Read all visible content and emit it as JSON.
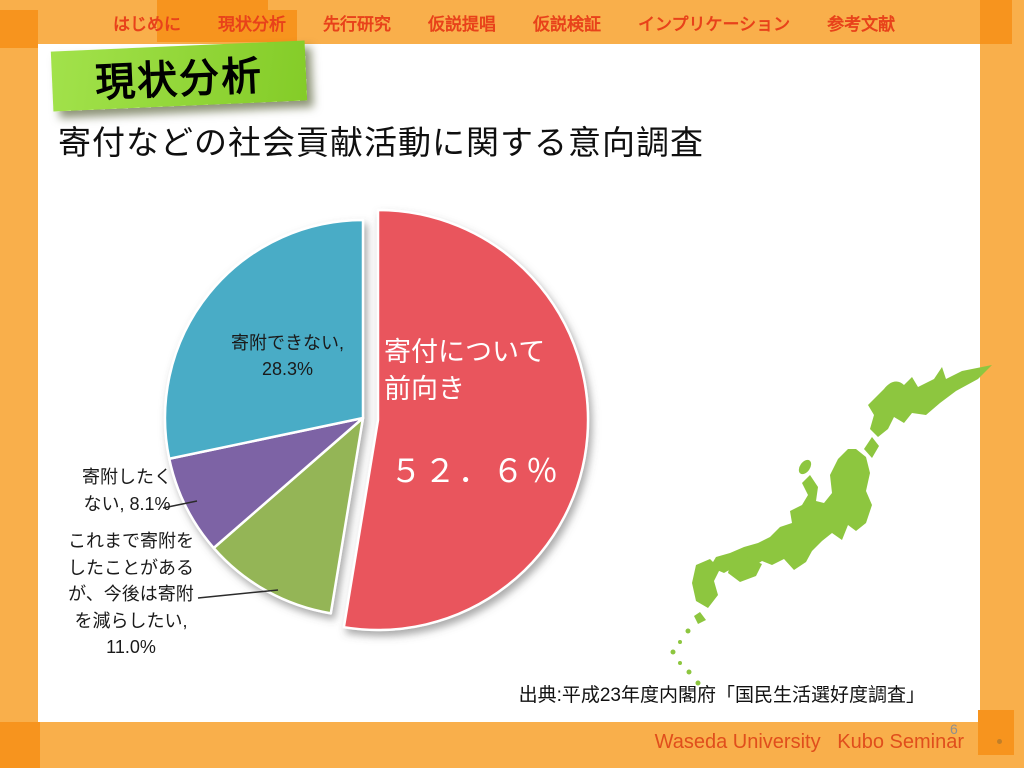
{
  "nav": {
    "items": [
      {
        "label": "はじめに",
        "active": false
      },
      {
        "label": "現状分析",
        "active": true
      },
      {
        "label": "先行研究",
        "active": false
      },
      {
        "label": "仮説提唱",
        "active": false
      },
      {
        "label": "仮説検証",
        "active": false
      },
      {
        "label": "インプリケーション",
        "active": false
      },
      {
        "label": "参考文献",
        "active": false
      }
    ]
  },
  "badge": "現状分析",
  "title": "寄付などの社会貢献活動に関する意向調査",
  "chart_data": {
    "type": "pie",
    "title": "寄付などの社会貢献活動に関する意向調査",
    "unit": "%",
    "start_angle_deg": 0,
    "direction": "clockwise",
    "slices": [
      {
        "id": "positive",
        "label": "寄付について前向き",
        "value": 52.6,
        "value_display": "５２．６％",
        "color": "#E9545D",
        "exploded": true,
        "label_lines": [
          "寄付について",
          "前向き"
        ]
      },
      {
        "id": "reduce",
        "label": "これまで寄附をしたことがあるが、今後は寄附を減らしたい",
        "value": 11.0,
        "color": "#94B557",
        "exploded": false,
        "label_lines": [
          "これまで寄附を",
          "したことがある",
          "が、今後は寄附",
          "を減らしたい,",
          "11.0%"
        ]
      },
      {
        "id": "dont-want",
        "label": "寄附したくない",
        "value": 8.1,
        "color": "#7D63A5",
        "exploded": false,
        "label_lines": [
          "寄附したく",
          "ない, 8.1%"
        ]
      },
      {
        "id": "cannot",
        "label": "寄附できない",
        "value": 28.3,
        "color": "#4AACC6",
        "exploded": false,
        "label_lines": [
          "寄附できない,",
          "28.3%"
        ]
      }
    ]
  },
  "map": {
    "name": "japan",
    "color": "#8DC63F"
  },
  "source": "出典:平成23年度内閣府「国民生活選好度調査」",
  "page_number": "6",
  "footer": "Waseda University   Kubo Seminar",
  "colors": {
    "frame": "#F9AF4B",
    "frame_dark": "#F7941E",
    "nav_text": "#E8421A",
    "footer_text": "#E04E1C",
    "badge_green": "#8FD433",
    "map_green": "#8DC63F",
    "page_number_gray": "#8F8F8F"
  }
}
